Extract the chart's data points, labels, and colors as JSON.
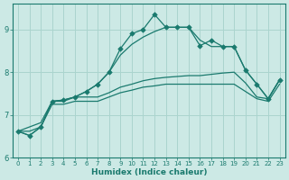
{
  "xlabel": "Humidex (Indice chaleur)",
  "xlim": [
    -0.5,
    23.5
  ],
  "ylim": [
    6.0,
    9.6
  ],
  "yticks": [
    6,
    7,
    8,
    9
  ],
  "xticks": [
    0,
    1,
    2,
    3,
    4,
    5,
    6,
    7,
    8,
    9,
    10,
    11,
    12,
    13,
    14,
    15,
    16,
    17,
    18,
    19,
    20,
    21,
    22,
    23
  ],
  "bg_color": "#cce9e5",
  "line_color": "#1a7a6e",
  "grid_color": "#aad4ce",
  "lines": [
    {
      "x": [
        0,
        1,
        2,
        3,
        4,
        5,
        6,
        7,
        8,
        9,
        10,
        11,
        12,
        13,
        14,
        15,
        16,
        17,
        18,
        19,
        20,
        21,
        22,
        23
      ],
      "y": [
        6.62,
        6.52,
        6.72,
        7.32,
        7.35,
        7.42,
        7.55,
        7.72,
        8.0,
        8.55,
        8.9,
        9.0,
        9.35,
        9.05,
        9.05,
        9.05,
        8.62,
        8.75,
        8.6,
        8.6,
        8.05,
        7.72,
        7.38,
        7.82
      ],
      "marker": true
    },
    {
      "x": [
        0,
        1,
        2,
        3,
        4,
        5,
        6,
        7,
        8,
        9,
        10,
        11,
        12,
        13,
        14,
        15,
        16,
        17,
        18,
        19,
        20,
        21,
        22,
        23
      ],
      "y": [
        6.62,
        6.52,
        6.72,
        7.32,
        7.35,
        7.42,
        7.55,
        7.72,
        8.0,
        8.4,
        8.65,
        8.82,
        8.95,
        9.05,
        9.05,
        9.05,
        8.75,
        8.6,
        8.6,
        8.6,
        8.05,
        7.72,
        7.38,
        7.82
      ],
      "marker": false
    },
    {
      "x": [
        0,
        1,
        2,
        3,
        4,
        5,
        6,
        7,
        8,
        9,
        10,
        11,
        12,
        13,
        14,
        15,
        16,
        17,
        18,
        19,
        20,
        21,
        22,
        23
      ],
      "y": [
        6.62,
        6.72,
        6.82,
        7.32,
        7.32,
        7.42,
        7.42,
        7.42,
        7.52,
        7.65,
        7.72,
        7.8,
        7.85,
        7.88,
        7.9,
        7.92,
        7.92,
        7.95,
        7.98,
        8.0,
        7.75,
        7.42,
        7.38,
        7.82
      ],
      "marker": false
    },
    {
      "x": [
        0,
        1,
        2,
        3,
        4,
        5,
        6,
        7,
        8,
        9,
        10,
        11,
        12,
        13,
        14,
        15,
        16,
        17,
        18,
        19,
        20,
        21,
        22,
        23
      ],
      "y": [
        6.62,
        6.62,
        6.72,
        7.25,
        7.25,
        7.32,
        7.32,
        7.32,
        7.42,
        7.52,
        7.58,
        7.65,
        7.68,
        7.72,
        7.72,
        7.72,
        7.72,
        7.72,
        7.72,
        7.72,
        7.55,
        7.38,
        7.32,
        7.72
      ],
      "marker": false
    }
  ]
}
